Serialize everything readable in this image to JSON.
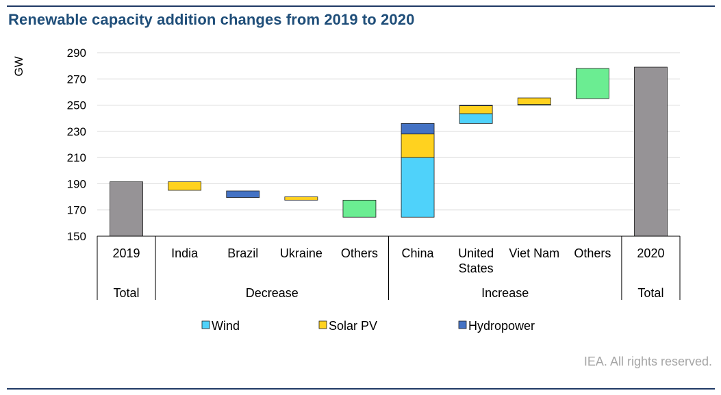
{
  "header": {
    "title": "Renewable capacity addition changes from 2019 to 2020"
  },
  "footer": {
    "credit": "IEA. All rights reserved."
  },
  "chart_data": {
    "type": "waterfall",
    "title": "Renewable capacity addition changes from 2019 to 2020",
    "ylabel": "GW",
    "ylim": [
      150,
      290
    ],
    "yticks": [
      150,
      170,
      190,
      210,
      230,
      250,
      270,
      290
    ],
    "grid": true,
    "legend_position": "bottom",
    "categories": [
      "2019",
      "India",
      "Brazil",
      "Ukraine",
      "Others",
      "China",
      "United States",
      "Viet Nam",
      "Others",
      "2020"
    ],
    "category_label_lines": [
      [
        "2019"
      ],
      [
        "India"
      ],
      [
        "Brazil"
      ],
      [
        "Ukraine"
      ],
      [
        "Others"
      ],
      [
        "China"
      ],
      [
        "United",
        "States"
      ],
      [
        "Viet Nam"
      ],
      [
        "Others"
      ],
      [
        "2020"
      ]
    ],
    "groups": [
      {
        "label": "Total",
        "span": [
          0,
          0
        ]
      },
      {
        "label": "Decrease",
        "span": [
          1,
          4
        ]
      },
      {
        "label": "Increase",
        "span": [
          5,
          8
        ]
      },
      {
        "label": "Total",
        "span": [
          9,
          9
        ]
      }
    ],
    "colors": {
      "Total": "#969396",
      "Wind": "#4fd2fa",
      "Solar PV": "#ffd21f",
      "Hydropower": "#4472c4",
      "Others": "#6bed92"
    },
    "legend": [
      "Wind",
      "Solar PV",
      "Hydropower"
    ],
    "bars": [
      {
        "category": "2019",
        "segments": [
          {
            "series": "Total",
            "from": 150,
            "to": 191.5
          }
        ]
      },
      {
        "category": "India",
        "segments": [
          {
            "series": "Solar PV",
            "from": 185,
            "to": 191.5
          }
        ]
      },
      {
        "category": "Brazil",
        "segments": [
          {
            "series": "Hydropower",
            "from": 179.5,
            "to": 184.5
          }
        ]
      },
      {
        "category": "Ukraine",
        "segments": [
          {
            "series": "Solar PV",
            "from": 177.5,
            "to": 180
          }
        ]
      },
      {
        "category": "Others",
        "segments": [
          {
            "series": "Others",
            "from": 164.5,
            "to": 177.5
          }
        ]
      },
      {
        "category": "China",
        "segments": [
          {
            "series": "Wind",
            "from": 164.5,
            "to": 210
          },
          {
            "series": "Solar PV",
            "from": 210,
            "to": 228
          },
          {
            "series": "Hydropower",
            "from": 228,
            "to": 236
          }
        ]
      },
      {
        "category": "United States",
        "segments": [
          {
            "series": "Wind",
            "from": 236,
            "to": 243.5
          },
          {
            "series": "Solar PV",
            "from": 243.5,
            "to": 249.5
          },
          {
            "series": "Hydropower",
            "from": 249.5,
            "to": 250
          }
        ]
      },
      {
        "category": "Viet Nam",
        "segments": [
          {
            "series": "Wind",
            "from": 250,
            "to": 250.5
          },
          {
            "series": "Solar PV",
            "from": 250.5,
            "to": 255.5
          }
        ]
      },
      {
        "category": "Others",
        "segments": [
          {
            "series": "Others",
            "from": 255,
            "to": 278
          }
        ]
      },
      {
        "category": "2020",
        "segments": [
          {
            "series": "Total",
            "from": 150,
            "to": 279
          }
        ]
      }
    ]
  }
}
